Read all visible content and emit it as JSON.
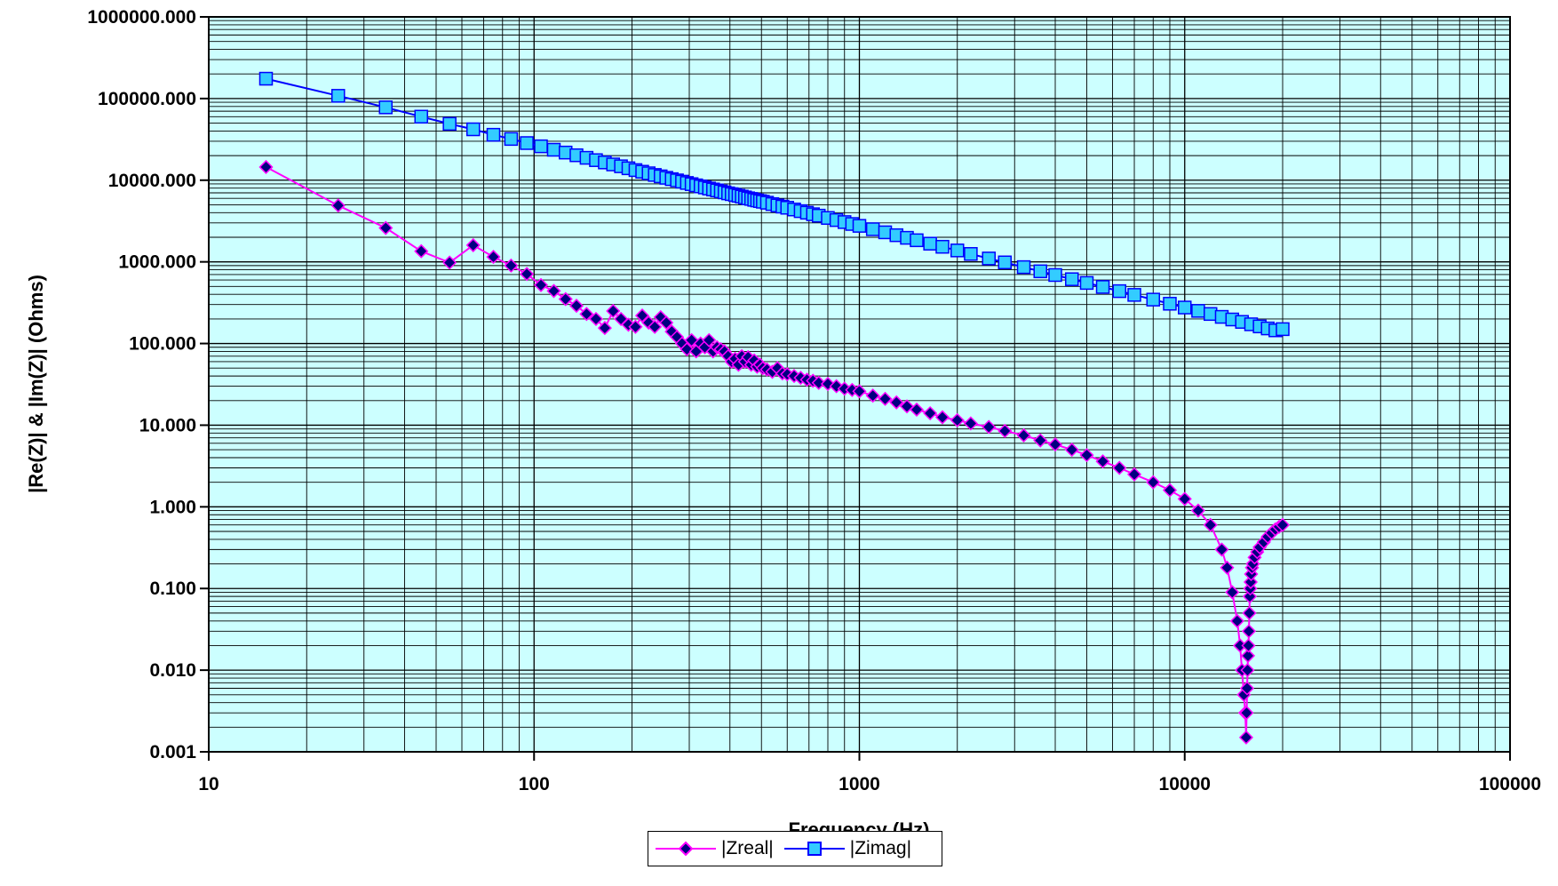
{
  "chart_data": {
    "type": "scatter",
    "xlabel": "Frequency (Hz)",
    "ylabel": "|Re(Z)| & |Im(Z)| (Ohms)",
    "xscale": "log",
    "yscale": "log",
    "xlim": [
      10,
      100000
    ],
    "ylim": [
      0.001,
      1000000
    ],
    "x_tick_labels": [
      "10",
      "100",
      "1000",
      "10000",
      "100000"
    ],
    "y_tick_labels": [
      "1000000.000",
      "100000.000",
      "10000.000",
      "1000.000",
      "100.000",
      "10.000",
      "1.000",
      "0.100",
      "0.010",
      "0.001"
    ],
    "grid": true,
    "plot_background": "#ccffff",
    "legend_position": "bottom-center",
    "series": [
      {
        "name": "|Zreal|",
        "color": "#ff00ff",
        "marker": "diamond",
        "marker_fill": "#000080",
        "x": [
          15,
          25,
          35,
          45,
          55,
          65,
          75,
          85,
          95,
          105,
          115,
          125,
          135,
          145,
          155,
          165,
          175,
          185,
          195,
          205,
          215,
          225,
          235,
          245,
          255,
          265,
          275,
          285,
          295,
          305,
          315,
          325,
          335,
          345,
          355,
          365,
          375,
          385,
          395,
          405,
          415,
          425,
          435,
          445,
          455,
          465,
          475,
          485,
          495,
          505,
          520,
          540,
          560,
          580,
          600,
          630,
          660,
          690,
          720,
          750,
          800,
          850,
          900,
          950,
          1000,
          1100,
          1200,
          1300,
          1400,
          1500,
          1650,
          1800,
          2000,
          2200,
          2500,
          2800,
          3200,
          3600,
          4000,
          4500,
          5000,
          5600,
          6300,
          7000,
          8000,
          9000,
          10000,
          11000,
          12000,
          13000,
          13500,
          14000,
          14500,
          14800,
          15000,
          15200,
          15350,
          15450,
          15500,
          15550,
          15600,
          15650,
          15700,
          15750,
          15800,
          15850,
          15900,
          15950,
          16000,
          16100,
          16200,
          16400,
          16700,
          17000,
          17500,
          18000,
          18500,
          19000,
          19500,
          20000
        ],
        "y": [
          14500,
          4900,
          2600,
          1350,
          980,
          1600,
          1150,
          900,
          710,
          520,
          440,
          350,
          290,
          230,
          200,
          155,
          250,
          200,
          170,
          160,
          220,
          180,
          160,
          210,
          180,
          140,
          120,
          100,
          85,
          110,
          80,
          100,
          90,
          110,
          80,
          90,
          85,
          80,
          70,
          60,
          65,
          55,
          70,
          60,
          68,
          55,
          62,
          52,
          55,
          50,
          48,
          45,
          50,
          43,
          42,
          40,
          38,
          36,
          35,
          33,
          32,
          30,
          28,
          27,
          26,
          23,
          21,
          19,
          17,
          15.5,
          14,
          12.5,
          11.5,
          10.5,
          9.5,
          8.5,
          7.5,
          6.5,
          5.8,
          5.0,
          4.3,
          3.6,
          3.0,
          2.5,
          2.0,
          1.6,
          1.25,
          0.9,
          0.6,
          0.3,
          0.18,
          0.09,
          0.04,
          0.02,
          0.01,
          0.005,
          0.003,
          0.0015,
          0.003,
          0.006,
          0.01,
          0.015,
          0.02,
          0.03,
          0.05,
          0.08,
          0.1,
          0.12,
          0.15,
          0.18,
          0.2,
          0.24,
          0.28,
          0.32,
          0.37,
          0.43,
          0.48,
          0.53,
          0.57,
          0.6
        ]
      },
      {
        "name": "|Zimag|",
        "color": "#0000ff",
        "marker": "square",
        "marker_fill": "#33ccff",
        "x": [
          15,
          25,
          35,
          45,
          55,
          65,
          75,
          85,
          95,
          105,
          115,
          125,
          135,
          145,
          155,
          165,
          175,
          185,
          195,
          205,
          215,
          225,
          235,
          245,
          255,
          265,
          275,
          285,
          295,
          305,
          315,
          325,
          335,
          345,
          355,
          365,
          375,
          385,
          395,
          405,
          415,
          425,
          435,
          445,
          455,
          465,
          475,
          485,
          495,
          505,
          520,
          540,
          560,
          580,
          600,
          630,
          660,
          690,
          720,
          750,
          800,
          850,
          900,
          950,
          1000,
          1100,
          1200,
          1300,
          1400,
          1500,
          1650,
          1800,
          2000,
          2200,
          2500,
          2800,
          3200,
          3600,
          4000,
          4500,
          5000,
          5600,
          6300,
          7000,
          8000,
          9000,
          10000,
          11000,
          12000,
          13000,
          14000,
          15000,
          16000,
          17000,
          18000,
          19000,
          20000
        ],
        "y": [
          175000,
          108000,
          78000,
          60000,
          49000,
          42000,
          36000,
          32000,
          28500,
          26000,
          23600,
          21800,
          20200,
          18800,
          17600,
          16500,
          15600,
          14800,
          14000,
          13300,
          12700,
          12150,
          11600,
          11150,
          10700,
          10300,
          9950,
          9600,
          9250,
          8950,
          8650,
          8400,
          8150,
          7900,
          7700,
          7500,
          7300,
          7100,
          6900,
          6750,
          6600,
          6450,
          6300,
          6150,
          6000,
          5900,
          5750,
          5650,
          5550,
          5450,
          5300,
          5100,
          4900,
          4750,
          4600,
          4380,
          4180,
          4000,
          3830,
          3680,
          3450,
          3250,
          3070,
          2910,
          2760,
          2510,
          2300,
          2120,
          1970,
          1840,
          1670,
          1530,
          1380,
          1250,
          1100,
          985,
          862,
          766,
          690,
          613,
          552,
          493,
          438,
          394,
          345,
          307,
          276,
          251,
          230,
          212,
          197,
          184,
          172,
          162,
          153,
          145,
          150
        ]
      }
    ]
  }
}
